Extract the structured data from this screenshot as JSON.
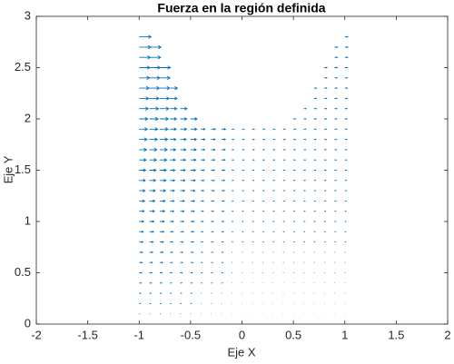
{
  "chart_data": {
    "type": "quiver",
    "title": "Fuerza en la región definida",
    "xlabel": "Eje X",
    "ylabel": "Eje Y",
    "xlim": [
      -2,
      2
    ],
    "xticks": [
      -2,
      -1.5,
      -1,
      -0.5,
      0,
      0.5,
      1,
      1.5,
      2
    ],
    "ylim": [
      0,
      3
    ],
    "yticks": [
      0,
      0.5,
      1,
      1.5,
      2,
      2.5,
      3
    ],
    "color": "#0072bd",
    "y": [
      0,
      0.1,
      0.2,
      0.3,
      0.4,
      0.5,
      0.6,
      0.7,
      0.8,
      0.9,
      1,
      1.1,
      1.2,
      1.3,
      1.4,
      1.5,
      1.6,
      1.7,
      1.8,
      1.9,
      2,
      2.1,
      2.2,
      2.3,
      2.4,
      2.5,
      2.6,
      2.7,
      2.8
    ],
    "columns": [
      {
        "x": -1,
        "u": [
          0.004,
          0.008,
          0.012,
          0.016,
          0.02,
          0.024,
          0.028,
          0.032,
          0.036,
          0.04,
          0.044,
          0.048,
          0.052,
          0.056,
          0.06,
          0.064,
          0.068,
          0.072,
          0.076,
          0.08,
          0.084,
          0.088,
          0.092,
          0.096,
          0.1,
          0.104,
          0.108,
          0.112,
          0.116
        ]
      },
      {
        "x": -0.9,
        "u": [
          0.004,
          0.008,
          0.012,
          0.016,
          0.02,
          0.024,
          0.028,
          0.032,
          0.036,
          0.04,
          0.044,
          0.048,
          0.052,
          0.056,
          0.06,
          0.064,
          0.068,
          0.072,
          0.076,
          0.08,
          0.084,
          0.088,
          0.092,
          0.096,
          0.1,
          0.104,
          0.108,
          0.112
        ]
      },
      {
        "x": -0.8,
        "u": [
          0.004,
          0.008,
          0.012,
          0.016,
          0.02,
          0.024,
          0.028,
          0.032,
          0.036,
          0.04,
          0.044,
          0.048,
          0.052,
          0.056,
          0.06,
          0.064,
          0.068,
          0.072,
          0.076,
          0.08,
          0.084,
          0.088,
          0.092,
          0.096,
          0.1,
          0.104
        ]
      },
      {
        "x": -0.7,
        "u": [
          0.003,
          0.006,
          0.009,
          0.012,
          0.015,
          0.018,
          0.021,
          0.024,
          0.027,
          0.03,
          0.033,
          0.036,
          0.039,
          0.042,
          0.045,
          0.048,
          0.051,
          0.054,
          0.057,
          0.06,
          0.063,
          0.066,
          0.069,
          0.072
        ]
      },
      {
        "x": -0.6,
        "u": [
          0.003,
          0.006,
          0.009,
          0.012,
          0.015,
          0.018,
          0.021,
          0.024,
          0.027,
          0.03,
          0.033,
          0.036,
          0.039,
          0.042,
          0.045,
          0.048,
          0.051,
          0.054,
          0.057,
          0.06,
          0.063,
          0.066
        ]
      },
      {
        "x": -0.5,
        "u": [
          0.003,
          0.006,
          0.009,
          0.012,
          0.015,
          0.018,
          0.021,
          0.024,
          0.027,
          0.03,
          0.033,
          0.036,
          0.039,
          0.042,
          0.045,
          0.048,
          0.051,
          0.054,
          0.057,
          0.06,
          0.063
        ]
      },
      {
        "x": -0.4,
        "u": [
          0.002,
          0.004,
          0.006,
          0.008,
          0.01,
          0.012,
          0.014,
          0.016,
          0.018,
          0.02,
          0.022,
          0.024,
          0.026,
          0.028,
          0.03,
          0.032,
          0.034,
          0.036,
          0.038,
          0.04
        ]
      },
      {
        "x": -0.3,
        "u": [
          0.002,
          0.004,
          0.006,
          0.008,
          0.01,
          0.012,
          0.014,
          0.016,
          0.018,
          0.02,
          0.022,
          0.024,
          0.026,
          0.028,
          0.03,
          0.032,
          0.034,
          0.036,
          0.038,
          0.04
        ]
      },
      {
        "x": -0.2,
        "u": [
          0.002,
          0.004,
          0.006,
          0.008,
          0.01,
          0.012,
          0.014,
          0.016,
          0.018,
          0.02,
          0.022,
          0.024,
          0.026,
          0.028,
          0.03,
          0.032,
          0.034,
          0.036,
          0.038,
          0.04
        ]
      },
      {
        "x": -0.1,
        "u": [
          0.001,
          0.002,
          0.003,
          0.004,
          0.005,
          0.006,
          0.007,
          0.008,
          0.009,
          0.01,
          0.011,
          0.012,
          0.013,
          0.014,
          0.015,
          0.016,
          0.017,
          0.018,
          0.019,
          0.02
        ]
      },
      {
        "x": 0,
        "u": [
          0.001,
          0.002,
          0.003,
          0.004,
          0.005,
          0.006,
          0.007,
          0.008,
          0.009,
          0.01,
          0.011,
          0.012,
          0.013,
          0.014,
          0.015,
          0.016,
          0.017,
          0.018,
          0.019,
          0.02
        ]
      },
      {
        "x": 0.1,
        "u": [
          0.001,
          0.002,
          0.003,
          0.004,
          0.005,
          0.006,
          0.007,
          0.008,
          0.009,
          0.01,
          0.011,
          0.012,
          0.013,
          0.014,
          0.015,
          0.016,
          0.017,
          0.018,
          0.019,
          0.02
        ]
      },
      {
        "x": 0.2,
        "u": [
          0.001,
          0.002,
          0.003,
          0.004,
          0.005,
          0.006,
          0.007,
          0.008,
          0.009,
          0.01,
          0.011,
          0.012,
          0.013,
          0.014,
          0.015,
          0.016,
          0.017,
          0.018,
          0.019,
          0.02
        ]
      },
      {
        "x": 0.3,
        "u": [
          0.001,
          0.002,
          0.003,
          0.004,
          0.005,
          0.006,
          0.007,
          0.008,
          0.009,
          0.01,
          0.011,
          0.012,
          0.013,
          0.014,
          0.015,
          0.016,
          0.017,
          0.018,
          0.019,
          0.02
        ]
      },
      {
        "x": 0.4,
        "u": [
          0.001,
          0.002,
          0.003,
          0.004,
          0.005,
          0.006,
          0.007,
          0.008,
          0.009,
          0.01,
          0.011,
          0.012,
          0.013,
          0.014,
          0.015,
          0.016,
          0.017,
          0.018,
          0.019,
          0.02
        ]
      },
      {
        "x": 0.5,
        "u": [
          0.001,
          0.002,
          0.003,
          0.004,
          0.005,
          0.006,
          0.007,
          0.008,
          0.009,
          0.01,
          0.011,
          0.012,
          0.013,
          0.014,
          0.015,
          0.016,
          0.017,
          0.018,
          0.019,
          0.02,
          0.021
        ]
      },
      {
        "x": 0.6,
        "u": [
          0.001,
          0.002,
          0.003,
          0.004,
          0.005,
          0.006,
          0.007,
          0.008,
          0.009,
          0.01,
          0.011,
          0.012,
          0.013,
          0.014,
          0.015,
          0.016,
          0.017,
          0.018,
          0.019,
          0.02,
          0.021,
          0.022
        ]
      },
      {
        "x": 0.7,
        "u": [
          0.001,
          0.002,
          0.003,
          0.004,
          0.005,
          0.006,
          0.007,
          0.008,
          0.009,
          0.01,
          0.011,
          0.012,
          0.013,
          0.014,
          0.015,
          0.016,
          0.017,
          0.018,
          0.019,
          0.02,
          0.021,
          0.022,
          0.023,
          0.024
        ]
      },
      {
        "x": 0.8,
        "u": [
          0.001,
          0.002,
          0.003,
          0.004,
          0.005,
          0.006,
          0.007,
          0.008,
          0.009,
          0.01,
          0.011,
          0.012,
          0.013,
          0.014,
          0.015,
          0.016,
          0.017,
          0.018,
          0.019,
          0.02,
          0.021,
          0.022,
          0.023,
          0.024,
          0.025,
          0.026
        ]
      },
      {
        "x": 0.9,
        "u": [
          0.001,
          0.002,
          0.003,
          0.004,
          0.005,
          0.006,
          0.007,
          0.008,
          0.009,
          0.01,
          0.011,
          0.012,
          0.013,
          0.014,
          0.015,
          0.016,
          0.017,
          0.018,
          0.019,
          0.02,
          0.021,
          0.022,
          0.023,
          0.024,
          0.025,
          0.026,
          0.027,
          0.028
        ]
      },
      {
        "x": 1,
        "u": [
          0.001,
          0.002,
          0.003,
          0.004,
          0.005,
          0.006,
          0.007,
          0.008,
          0.009,
          0.01,
          0.011,
          0.012,
          0.013,
          0.014,
          0.015,
          0.016,
          0.017,
          0.018,
          0.019,
          0.02,
          0.021,
          0.022,
          0.023,
          0.024,
          0.025,
          0.026,
          0.027,
          0.028,
          0.029
        ]
      }
    ]
  }
}
